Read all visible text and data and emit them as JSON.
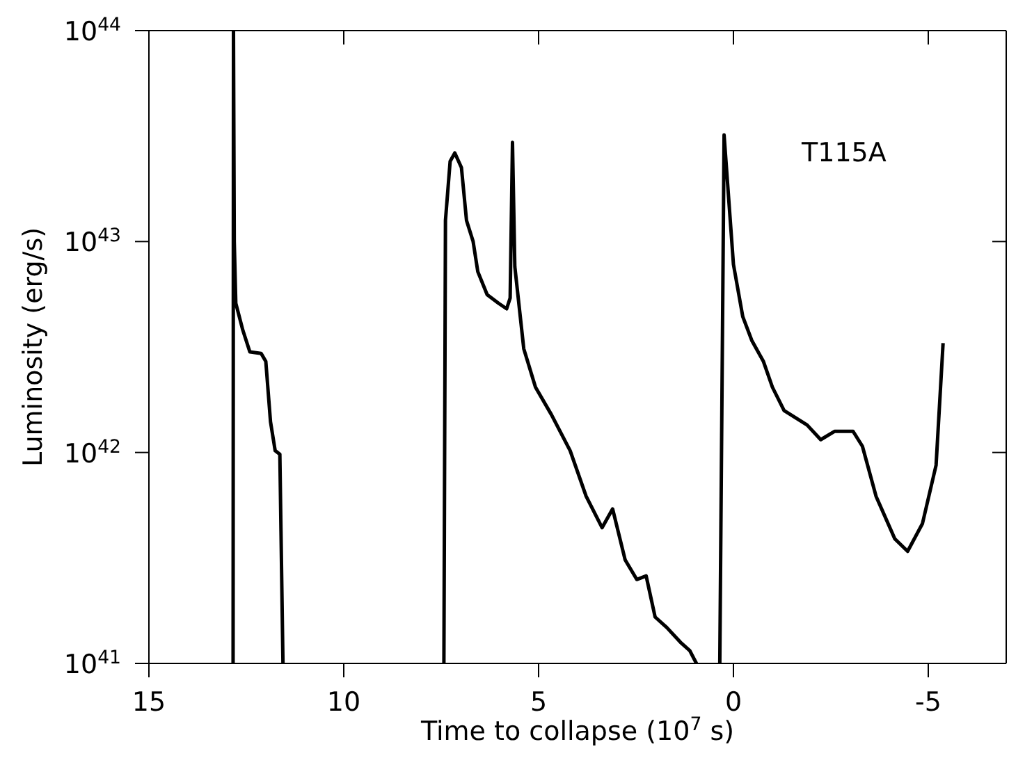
{
  "chart_data": {
    "type": "line",
    "ylabel": "Luminosity (erg/s)",
    "xlabel": "Time to collapse (10$^{7}$ s)",
    "annotations": [
      "T115A"
    ],
    "log": "y",
    "marker": "none",
    "line_style": "solid",
    "xlim": [
      15,
      -7
    ],
    "xticks": [
      15,
      10,
      5,
      0,
      -5
    ],
    "ylim": [
      1e+41,
      1e+44
    ],
    "yticks": [
      {
        "value": 1e+41,
        "label": "10$^{41}$"
      },
      {
        "value": 1e+42,
        "label": "10$^{42}$"
      },
      {
        "value": 1e+43,
        "label": "10$^{43}$"
      },
      {
        "value": 1e+44,
        "label": "10$^{44}$"
      }
    ],
    "series": [
      {
        "color": "#000000",
        "x": [
          12.84,
          12.83,
          12.81,
          12.77,
          12.59,
          12.41,
          12.12,
          12.0,
          11.88,
          11.76,
          11.64,
          11.56
        ],
        "values": [
          1e+41,
          1e+44,
          1e+43,
          5.1e+42,
          3.8e+42,
          3e+42,
          2.95e+42,
          2.7e+42,
          1.4e+42,
          1.02e+42,
          9.8e+41,
          1e+41
        ]
      },
      {
        "color": "#000000",
        "x": [
          7.43,
          7.39,
          7.27,
          7.15,
          6.98,
          6.85,
          6.68,
          6.56,
          6.32,
          6.03,
          5.82,
          5.73,
          5.67,
          5.61,
          5.38,
          5.08,
          4.67,
          4.19,
          3.78,
          3.37,
          3.1,
          2.78,
          2.48,
          2.24,
          2.01,
          1.71,
          1.36,
          1.12,
          0.95
        ],
        "values": [
          1e+41,
          1.26e+43,
          2.4e+43,
          2.63e+43,
          2.24e+43,
          1.26e+43,
          1e+43,
          7.2e+42,
          5.6e+42,
          5.1e+42,
          4.8e+42,
          5.4e+42,
          2.95e+43,
          7.6e+42,
          3.1e+42,
          2.04e+42,
          1.51e+42,
          1.02e+42,
          6.2e+41,
          4.4e+41,
          5.4e+41,
          3.1e+41,
          2.5e+41,
          2.6e+41,
          1.66e+41,
          1.48e+41,
          1.26e+41,
          1.15e+41,
          1e+41
        ]
      },
      {
        "color": "#000000",
        "x": [
          0.35,
          0.24,
          0.0,
          -0.24,
          -0.47,
          -0.77,
          -1.0,
          -1.3,
          -1.89,
          -2.24,
          -2.6,
          -3.07,
          -3.31,
          -3.66,
          -4.14,
          -4.47,
          -4.85,
          -5.2,
          -5.38
        ],
        "values": [
          1e+41,
          3.2e+43,
          7.8e+42,
          4.4e+42,
          3.4e+42,
          2.7e+42,
          2.04e+42,
          1.58e+42,
          1.35e+42,
          1.15e+42,
          1.26e+42,
          1.26e+42,
          1.07e+42,
          6.2e+41,
          3.9e+41,
          3.4e+41,
          4.6e+41,
          8.7e+41,
          3.3e+42
        ]
      }
    ]
  }
}
